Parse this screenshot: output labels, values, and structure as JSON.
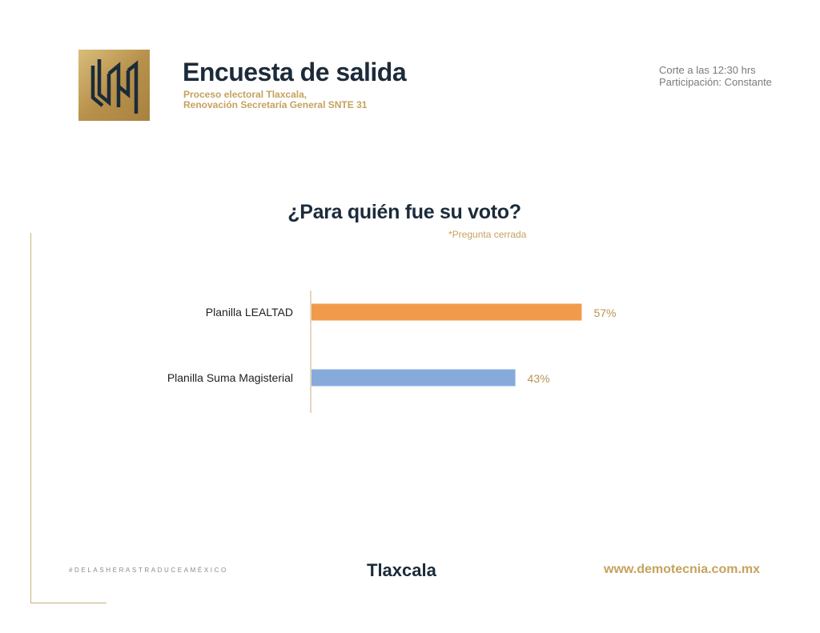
{
  "header": {
    "title": "Encuesta de salida",
    "subtitle_line1": "Proceso electoral Tlaxcala,",
    "subtitle_line2": "Renovación Secretaría General SNTE 31",
    "cutoff": "Corte a las 12:30 hrs",
    "participation": "Participación: Constante"
  },
  "colors": {
    "navy": "#1c2b3a",
    "gold": "#c5a25e",
    "orange": "#f29a4c",
    "blue": "#86abdb"
  },
  "chart_data": {
    "type": "bar",
    "orientation": "horizontal",
    "title": "¿Para quién fue su voto?",
    "note": "*Pregunta cerrada",
    "categories": [
      "Planilla LEALTAD",
      "Planilla Suma Magisterial"
    ],
    "values": [
      57,
      43
    ],
    "value_labels": [
      "57%",
      "43%"
    ],
    "bar_colors": [
      "#f29a4c",
      "#86abdb"
    ],
    "xlim": [
      0,
      100
    ],
    "grid": false,
    "legend": "none"
  },
  "footer": {
    "hashtag": "#DELASHERASTRADUCEAMÉXICO",
    "region": "Tlaxcala",
    "url": "www.demotecnia.com.mx"
  }
}
